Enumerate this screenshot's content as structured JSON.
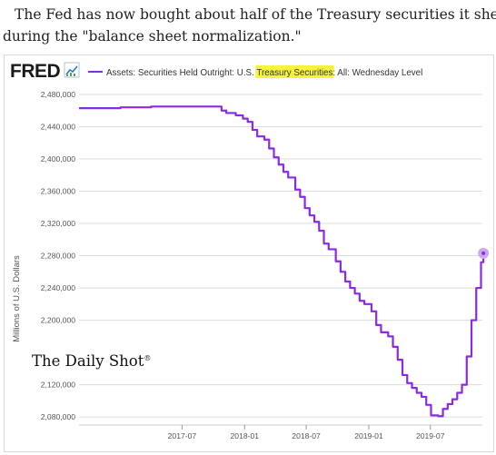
{
  "caption": {
    "line1": "The Fed has now bought about half of the Treasury securities it shed",
    "line2": "during the \"balance sheet normalization.\""
  },
  "logo": {
    "text": "FRED"
  },
  "watermark": {
    "text": "The Daily Shot"
  },
  "colors": {
    "series": "#8a2be2",
    "highlight": "#f6f33c",
    "endpoint": "#cda8f0"
  },
  "chart_data": {
    "type": "line",
    "title": "",
    "legend": {
      "placement": "top",
      "prefix": "Assets: Securities Held Outright: U.S. ",
      "highlight": "Treasury Securities",
      "suffix": ": All: Wednesday Level"
    },
    "ylabel": "Millions of U.S. Dollars",
    "xlabel": "",
    "ylim": [
      2070000,
      2480000
    ],
    "xlim": [
      "2016-09-01",
      "2019-12-01"
    ],
    "grid": true,
    "y_ticks": [
      {
        "value": 2080000,
        "label": "2,080,000"
      },
      {
        "value": 2120000,
        "label": "2,120,000"
      },
      {
        "value": 2200000,
        "label": "2,200,000"
      },
      {
        "value": 2240000,
        "label": "2,240,000"
      },
      {
        "value": 2280000,
        "label": "2,280,000"
      },
      {
        "value": 2320000,
        "label": "2,320,000"
      },
      {
        "value": 2360000,
        "label": "2,360,000"
      },
      {
        "value": 2400000,
        "label": "2,400,000"
      },
      {
        "value": 2440000,
        "label": "2,440,000"
      },
      {
        "value": 2480000,
        "label": "2,480,000"
      }
    ],
    "x_ticks": [
      {
        "value": "2017-07-01",
        "label": "2017-07"
      },
      {
        "value": "2018-01-01",
        "label": "2018-01"
      },
      {
        "value": "2018-07-01",
        "label": "2018-07"
      },
      {
        "value": "2019-01-01",
        "label": "2019-01"
      },
      {
        "value": "2019-07-01",
        "label": "2019-07"
      }
    ],
    "series": [
      {
        "x": [
          "2016-09-01",
          "2016-11-01",
          "2017-01-01",
          "2017-04-01",
          "2017-07-01",
          "2017-10-01",
          "2017-10-25",
          "2017-11-08",
          "2017-12-06",
          "2017-12-27",
          "2018-01-10",
          "2018-01-24",
          "2018-02-07",
          "2018-02-28",
          "2018-03-14",
          "2018-03-28",
          "2018-04-11",
          "2018-04-25",
          "2018-05-09",
          "2018-05-30",
          "2018-06-13",
          "2018-06-27",
          "2018-07-11",
          "2018-07-25",
          "2018-08-08",
          "2018-08-22",
          "2018-09-05",
          "2018-09-26",
          "2018-10-10",
          "2018-10-24",
          "2018-11-07",
          "2018-11-21",
          "2018-12-05",
          "2018-12-19",
          "2019-01-09",
          "2019-01-23",
          "2019-02-06",
          "2019-02-27",
          "2019-03-13",
          "2019-03-27",
          "2019-04-10",
          "2019-04-24",
          "2019-05-08",
          "2019-05-22",
          "2019-06-05",
          "2019-06-19",
          "2019-07-03",
          "2019-07-24",
          "2019-08-07",
          "2019-08-21",
          "2019-09-04",
          "2019-09-18",
          "2019-10-02",
          "2019-10-16",
          "2019-10-30",
          "2019-11-13",
          "2019-11-27",
          "2019-12-04"
        ],
        "y": [
          2463000,
          2463000,
          2464000,
          2465000,
          2465000,
          2465000,
          2460000,
          2457000,
          2454000,
          2450000,
          2446000,
          2436000,
          2428000,
          2424000,
          2413000,
          2402000,
          2393000,
          2384000,
          2377000,
          2362000,
          2353000,
          2339000,
          2330000,
          2322000,
          2311000,
          2295000,
          2288000,
          2273000,
          2260000,
          2248000,
          2240000,
          2233000,
          2224000,
          2220000,
          2211000,
          2194000,
          2185000,
          2180000,
          2167000,
          2151000,
          2132000,
          2122000,
          2116000,
          2110000,
          2105000,
          2095000,
          2082000,
          2081000,
          2090000,
          2096000,
          2102000,
          2110000,
          2120000,
          2155000,
          2200000,
          2240000,
          2272000,
          2283000
        ]
      }
    ]
  }
}
